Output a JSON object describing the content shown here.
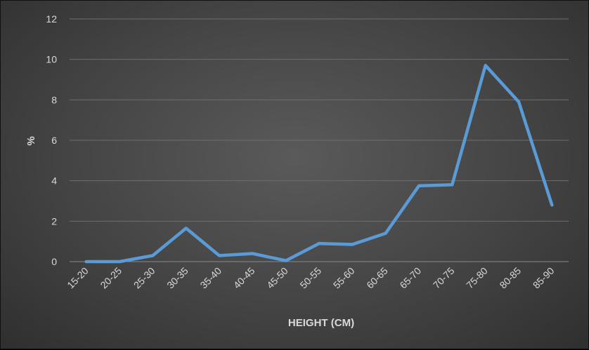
{
  "chart_data": {
    "type": "line",
    "title": "",
    "xlabel": "HEIGHT (CM)",
    "ylabel": "%",
    "ylim": [
      0,
      12
    ],
    "yticks": [
      0,
      2,
      4,
      6,
      8,
      10,
      12
    ],
    "grid": true,
    "legend": "none",
    "categories": [
      "15-20",
      "20-25",
      "25-30",
      "30-35",
      "35-40",
      "40-45",
      "45-50",
      "50-55",
      "55-60",
      "60-65",
      "65-70",
      "70-75",
      "75-80",
      "80-85",
      "85-90"
    ],
    "series": [
      {
        "values": [
          0.0,
          0.0,
          0.3,
          1.65,
          0.3,
          0.4,
          0.05,
          0.9,
          0.85,
          1.4,
          3.75,
          3.8,
          9.7,
          7.9,
          2.8
        ],
        "color": "#5b9bd5"
      }
    ]
  }
}
